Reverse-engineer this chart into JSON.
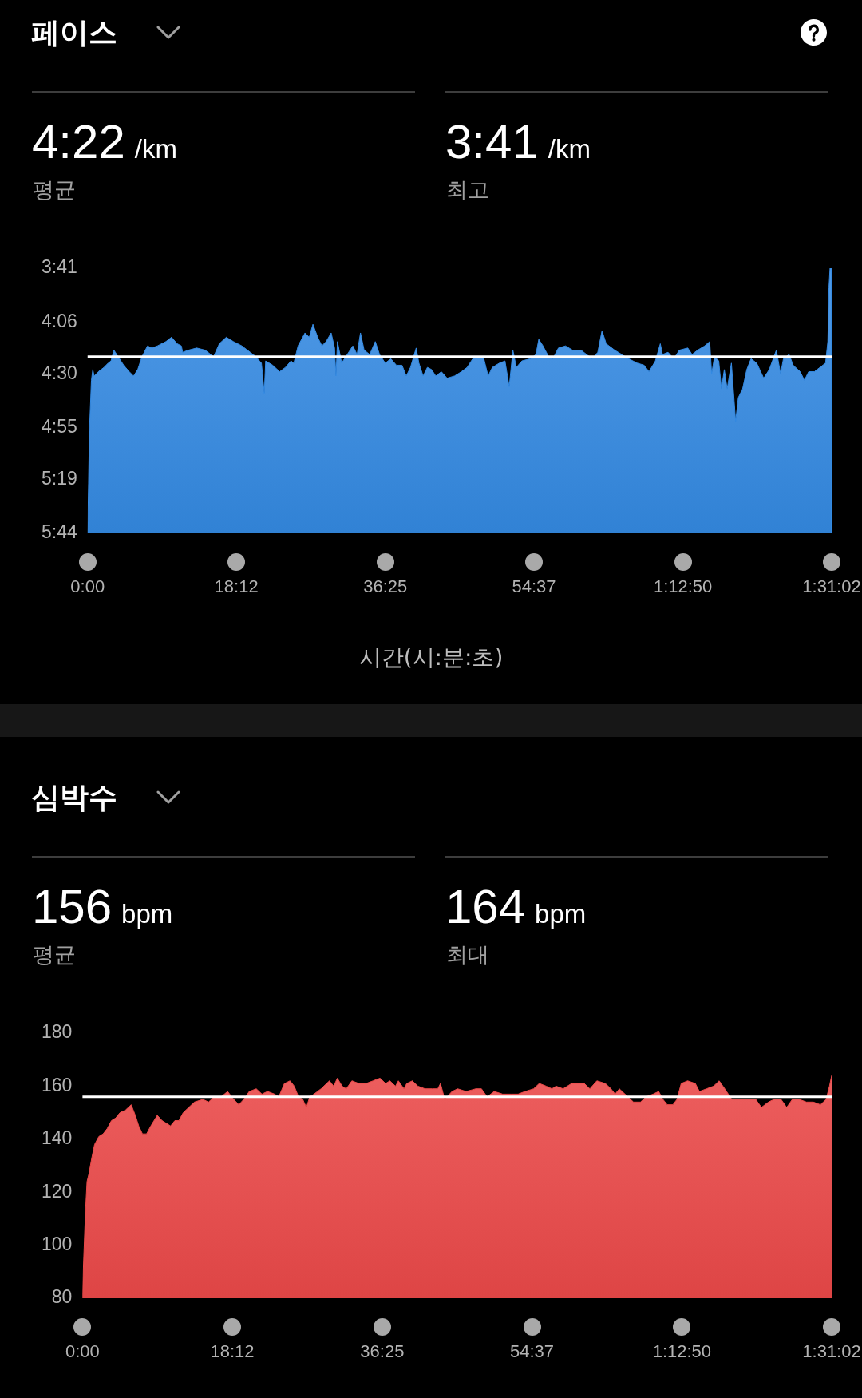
{
  "chart_data": [
    {
      "type": "area",
      "title": "페이스",
      "annotations": [
        "4:22",
        "/km",
        "평균",
        "3:41",
        "/km",
        "최고"
      ],
      "xlabel": "시간(시:분:초)",
      "color": "#348ae3",
      "x": [
        0,
        7,
        13,
        28,
        38,
        48,
        79,
        120,
        151,
        172,
        193,
        224,
        265,
        306,
        337,
        368,
        399,
        440,
        471,
        513,
        575,
        616,
        657,
        688,
        698,
        740,
        801,
        863,
        925,
        967,
        1018,
        1070,
        1132,
        1194,
        1235,
        1276,
        1297,
        1307,
        1359,
        1410,
        1452,
        1493,
        1514,
        1545,
        1596,
        1627,
        1654,
        1689,
        1720,
        1751,
        1788,
        1813,
        1823,
        1834,
        1865,
        1906,
        1947,
        1978,
        2003,
        2030,
        2071,
        2112,
        2143,
        2185,
        2226,
        2267,
        2308,
        2339,
        2370,
        2412,
        2432,
        2463,
        2494,
        2525,
        2556,
        2597,
        2639,
        2693,
        2744,
        2786,
        2827,
        2878,
        2909,
        2940,
        2971,
        3023,
        3064,
        3095,
        3122,
        3147,
        3188,
        3250,
        3291,
        3312,
        3343,
        3384,
        3415,
        3456,
        3508,
        3560,
        3622,
        3663,
        3704,
        3745,
        3776,
        3807,
        3869,
        3921,
        3972,
        4034,
        4086,
        4121,
        4168,
        4204,
        4220,
        4261,
        4303,
        4344,
        4406,
        4437,
        4478,
        4530,
        4567,
        4581,
        4602,
        4633,
        4653,
        4674,
        4695,
        4726,
        4757,
        4777,
        4808,
        4839,
        4870,
        4912,
        4963,
        5004,
        5056,
        5087,
        5108,
        5149,
        5180,
        5231,
        5262,
        5293,
        5335,
        5376,
        5417,
        5434,
        5442,
        5450,
        5462,
        5462
      ],
      "values": [
        344,
        321,
        297,
        273,
        268,
        271,
        269,
        267,
        265,
        264,
        259,
        262,
        266,
        269,
        271,
        268,
        262,
        257,
        258,
        257,
        255,
        253,
        256,
        257,
        260,
        259,
        258,
        259,
        262,
        256,
        253,
        255,
        257,
        260,
        262,
        265,
        279,
        264,
        266,
        269,
        267,
        264,
        265,
        257,
        251,
        253,
        247,
        253,
        257,
        255,
        251,
        258,
        271,
        255,
        265,
        261,
        257,
        261,
        251,
        259,
        261,
        255,
        261,
        265,
        263,
        266,
        266,
        271,
        267,
        258,
        265,
        271,
        267,
        268,
        271,
        269,
        272,
        271,
        269,
        267,
        263,
        262,
        263,
        271,
        267,
        265,
        264,
        276,
        259,
        267,
        264,
        263,
        261,
        254,
        257,
        262,
        263,
        258,
        257,
        259,
        259,
        261,
        263,
        260,
        250,
        256,
        259,
        261,
        263,
        265,
        266,
        269,
        264,
        256,
        261,
        260,
        263,
        259,
        258,
        261,
        259,
        257,
        255,
        270,
        262,
        264,
        277,
        268,
        277,
        265,
        292,
        281,
        277,
        268,
        263,
        265,
        272,
        268,
        259,
        270,
        263,
        261,
        266,
        269,
        273,
        269,
        269,
        267,
        265,
        255,
        230,
        221,
        221,
        344
      ],
      "xlim": [
        0,
        5462
      ],
      "xticks": [
        {
          "value": 0,
          "label": "0:00"
        },
        {
          "value": 1092,
          "label": "18:12"
        },
        {
          "value": 2185,
          "label": "36:25"
        },
        {
          "value": 3277,
          "label": "54:37"
        },
        {
          "value": 4370,
          "label": "1:12:50"
        },
        {
          "value": 5462,
          "label": "1:31:02"
        }
      ],
      "ylim": [
        344,
        221
      ],
      "yticks": [
        {
          "value": 221,
          "label": "3:41"
        },
        {
          "value": 246,
          "label": "4:06"
        },
        {
          "value": 270,
          "label": "4:30"
        },
        {
          "value": 295,
          "label": "4:55"
        },
        {
          "value": 319,
          "label": "5:19"
        },
        {
          "value": 344,
          "label": "5:44"
        }
      ],
      "ref_lines": [
        {
          "axis": "y",
          "value": 262,
          "color": "#ffffff"
        }
      ]
    },
    {
      "type": "area",
      "title": "심박수",
      "annotations": [
        "156",
        "bpm",
        "평균",
        "164",
        "bpm",
        "최대"
      ],
      "color": "#ec4949",
      "x": [
        0,
        6,
        21,
        33,
        47,
        68,
        88,
        119,
        150,
        180,
        211,
        242,
        273,
        314,
        355,
        385,
        410,
        437,
        467,
        498,
        545,
        580,
        611,
        642,
        673,
        703,
        734,
        775,
        816,
        878,
        919,
        960,
        1011,
        1058,
        1103,
        1140,
        1175,
        1216,
        1267,
        1308,
        1349,
        1400,
        1431,
        1472,
        1513,
        1544,
        1575,
        1606,
        1632,
        1657,
        1688,
        1739,
        1800,
        1831,
        1858,
        1893,
        1923,
        1964,
        2016,
        2067,
        2118,
        2169,
        2210,
        2241,
        2282,
        2303,
        2344,
        2364,
        2405,
        2446,
        2497,
        2549,
        2590,
        2610,
        2641,
        2694,
        2735,
        2797,
        2868,
        2909,
        2950,
        3002,
        3063,
        3125,
        3176,
        3227,
        3289,
        3330,
        3381,
        3422,
        3453,
        3504,
        3566,
        3617,
        3658,
        3699,
        3750,
        3812,
        3853,
        3883,
        3914,
        3955,
        4017,
        4068,
        4109,
        4160,
        4201,
        4232,
        4263,
        4304,
        4334,
        4365,
        4412,
        4468,
        4498,
        4550,
        4601,
        4642,
        4683,
        4734,
        4806,
        4857,
        4909,
        4950,
        5001,
        5042,
        5093,
        5134,
        5175,
        5226,
        5278,
        5329,
        5380,
        5421,
        5446,
        5462
      ],
      "values": [
        80,
        91,
        112,
        124,
        127,
        133,
        138,
        141,
        142,
        144,
        147,
        148,
        150,
        151,
        153,
        149,
        145,
        142,
        142,
        145,
        149,
        147,
        146,
        145,
        147,
        147,
        150,
        152,
        154,
        155,
        154,
        156,
        156,
        158,
        155,
        153,
        155,
        158,
        159,
        157,
        158,
        157,
        156,
        161,
        162,
        160,
        156,
        155,
        152,
        156,
        157,
        159,
        162,
        160,
        163,
        160,
        159,
        162,
        161,
        161,
        162,
        163,
        161,
        162,
        160,
        162,
        159,
        161,
        162,
        160,
        159,
        159,
        159,
        161,
        155,
        158,
        159,
        158,
        159,
        159,
        156,
        158,
        157,
        157,
        157,
        158,
        159,
        161,
        160,
        159,
        160,
        159,
        161,
        161,
        161,
        159,
        162,
        161,
        159,
        157,
        159,
        157,
        154,
        154,
        156,
        157,
        158,
        155,
        153,
        153,
        155,
        161,
        162,
        161,
        158,
        159,
        160,
        162,
        159,
        155,
        155,
        155,
        155,
        152,
        154,
        155,
        155,
        152,
        155,
        155,
        154,
        154,
        153,
        155,
        160,
        164
      ],
      "xlim": [
        0,
        5462
      ],
      "xticks": [
        {
          "value": 0,
          "label": "0:00"
        },
        {
          "value": 1092,
          "label": "18:12"
        },
        {
          "value": 2185,
          "label": "36:25"
        },
        {
          "value": 3277,
          "label": "54:37"
        },
        {
          "value": 4370,
          "label": "1:12:50"
        },
        {
          "value": 5462,
          "label": "1:31:02"
        }
      ],
      "ylim": [
        80,
        180
      ],
      "yticks": [
        80,
        100,
        120,
        140,
        160,
        180
      ],
      "ref_lines": [
        {
          "axis": "y",
          "value": 156,
          "color": "#ffffff"
        }
      ]
    }
  ]
}
